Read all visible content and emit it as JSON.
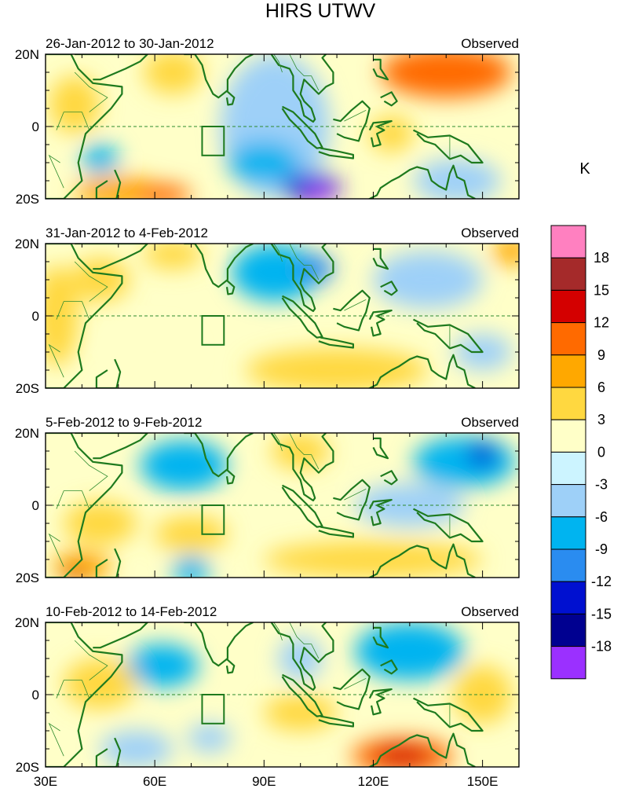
{
  "title": "HIRS UTWV",
  "colorbar_unit": "K",
  "colors": {
    "coast": "#1e7a1e",
    "border": "#2e8b2e",
    "equator": "#2e8b2e",
    "box": "#1e7a1e"
  },
  "chart_data": {
    "type": "heatmap",
    "title": "HIRS UTWV",
    "variable_unit": "K",
    "x_range": [
      30,
      160
    ],
    "y_range": [
      -20,
      20
    ],
    "x_ticks": [
      {
        "value": 30,
        "label": "30E"
      },
      {
        "value": 60,
        "label": "60E"
      },
      {
        "value": 90,
        "label": "90E"
      },
      {
        "value": 120,
        "label": "120E"
      },
      {
        "value": 150,
        "label": "150E"
      }
    ],
    "y_ticks": [
      {
        "value": 20,
        "label": "20N"
      },
      {
        "value": 0,
        "label": "0"
      },
      {
        "value": -20,
        "label": "20S"
      }
    ],
    "target_box": {
      "lon": [
        73,
        79
      ],
      "lat": [
        -8,
        0
      ]
    },
    "colorbar": {
      "levels": [
        "18",
        "15",
        "12",
        "9",
        "6",
        "3",
        "0",
        "-3",
        "-6",
        "-9",
        "-12",
        "-15",
        "-18"
      ],
      "colors": [
        "#ff80c0",
        "#a52a2a",
        "#d40000",
        "#ff6a00",
        "#ffa800",
        "#ffd840",
        "#ffffc8",
        "#ccf4ff",
        "#9ed0f8",
        "#00b4f0",
        "#2a8cf0",
        "#0010d0",
        "#000090",
        "#9b30ff"
      ]
    },
    "panels": [
      {
        "period": "26-Jan-2012 to 30-Jan-2012",
        "label": "Observed",
        "blobs": [
          {
            "lon": 38,
            "lat": 6,
            "rx": 7,
            "ry": 8,
            "value": 4
          },
          {
            "lon": 65,
            "lat": 15,
            "rx": 8,
            "ry": 6,
            "value": 6
          },
          {
            "lon": 50,
            "lat": -18,
            "rx": 12,
            "ry": 4,
            "value": 8
          },
          {
            "lon": 62,
            "lat": -19,
            "rx": 8,
            "ry": 3,
            "value": 10
          },
          {
            "lon": 140,
            "lat": 15,
            "rx": 18,
            "ry": 7,
            "value": 10
          },
          {
            "lon": 125,
            "lat": -2,
            "rx": 6,
            "ry": 5,
            "value": 4
          },
          {
            "lon": 93,
            "lat": 0,
            "rx": 15,
            "ry": 20,
            "value": -5
          },
          {
            "lon": 90,
            "lat": -10,
            "rx": 10,
            "ry": 6,
            "value": -7
          },
          {
            "lon": 103,
            "lat": -17,
            "rx": 8,
            "ry": 4,
            "value": -12
          },
          {
            "lon": 105,
            "lat": -18,
            "rx": 4,
            "ry": 2.5,
            "value": -20
          },
          {
            "lon": 45,
            "lat": -9,
            "rx": 5,
            "ry": 4,
            "value": -6
          },
          {
            "lon": 143,
            "lat": -15,
            "rx": 12,
            "ry": 6,
            "value": -4
          }
        ]
      },
      {
        "period": "31-Jan-2012 to 4-Feb-2012",
        "label": "Observed",
        "blobs": [
          {
            "lon": 33,
            "lat": 0,
            "rx": 6,
            "ry": 14,
            "value": 6
          },
          {
            "lon": 45,
            "lat": 10,
            "rx": 8,
            "ry": 6,
            "value": 4
          },
          {
            "lon": 65,
            "lat": 17,
            "rx": 8,
            "ry": 4,
            "value": 4
          },
          {
            "lon": 60,
            "lat": -10,
            "rx": 10,
            "ry": 6,
            "value": 3
          },
          {
            "lon": 110,
            "lat": -15,
            "rx": 25,
            "ry": 6,
            "value": 4
          },
          {
            "lon": 158,
            "lat": 18,
            "rx": 5,
            "ry": 4,
            "value": 8
          },
          {
            "lon": 93,
            "lat": 12,
            "rx": 12,
            "ry": 8,
            "value": -6
          },
          {
            "lon": 104,
            "lat": 13,
            "rx": 5,
            "ry": 4,
            "value": -10
          },
          {
            "lon": 135,
            "lat": 10,
            "rx": 15,
            "ry": 8,
            "value": -5
          },
          {
            "lon": 150,
            "lat": -10,
            "rx": 8,
            "ry": 5,
            "value": -5
          }
        ]
      },
      {
        "period": "5-Feb-2012 to 9-Feb-2012",
        "label": "Observed",
        "blobs": [
          {
            "lon": 68,
            "lat": 11,
            "rx": 12,
            "ry": 7,
            "value": -7
          },
          {
            "lon": 145,
            "lat": 12,
            "rx": 14,
            "ry": 7,
            "value": -6
          },
          {
            "lon": 150,
            "lat": 14,
            "rx": 4,
            "ry": 3,
            "value": -13
          },
          {
            "lon": 130,
            "lat": 0,
            "rx": 15,
            "ry": 6,
            "value": -4
          },
          {
            "lon": 45,
            "lat": -5,
            "rx": 10,
            "ry": 6,
            "value": 5
          },
          {
            "lon": 70,
            "lat": -8,
            "rx": 10,
            "ry": 5,
            "value": 4
          },
          {
            "lon": 100,
            "lat": 15,
            "rx": 8,
            "ry": 5,
            "value": 5
          },
          {
            "lon": 40,
            "lat": -17,
            "rx": 8,
            "ry": 4,
            "value": 8
          },
          {
            "lon": 38,
            "lat": -19,
            "rx": 3,
            "ry": 2,
            "value": 14
          },
          {
            "lon": 120,
            "lat": -15,
            "rx": 30,
            "ry": 5,
            "value": 4
          },
          {
            "lon": 70,
            "lat": -18,
            "rx": 5,
            "ry": 4,
            "value": -8
          }
        ]
      },
      {
        "period": "10-Feb-2012 to 14-Feb-2012",
        "label": "Observed",
        "blobs": [
          {
            "lon": 62,
            "lat": 8,
            "rx": 10,
            "ry": 6,
            "value": -7
          },
          {
            "lon": 130,
            "lat": 12,
            "rx": 15,
            "ry": 8,
            "value": -6
          },
          {
            "lon": 55,
            "lat": -15,
            "rx": 10,
            "ry": 5,
            "value": -4
          },
          {
            "lon": 128,
            "lat": -17,
            "rx": 14,
            "ry": 5,
            "value": 10
          },
          {
            "lon": 128,
            "lat": -17,
            "rx": 8,
            "ry": 3,
            "value": 14
          },
          {
            "lon": 45,
            "lat": 3,
            "rx": 10,
            "ry": 7,
            "value": 4
          },
          {
            "lon": 100,
            "lat": -5,
            "rx": 10,
            "ry": 5,
            "value": 4
          },
          {
            "lon": 150,
            "lat": 0,
            "rx": 8,
            "ry": 8,
            "value": 4
          },
          {
            "lon": 100,
            "lat": 10,
            "rx": 6,
            "ry": 6,
            "value": -4
          },
          {
            "lon": 75,
            "lat": -12,
            "rx": 6,
            "ry": 4,
            "value": -3
          }
        ]
      }
    ]
  }
}
